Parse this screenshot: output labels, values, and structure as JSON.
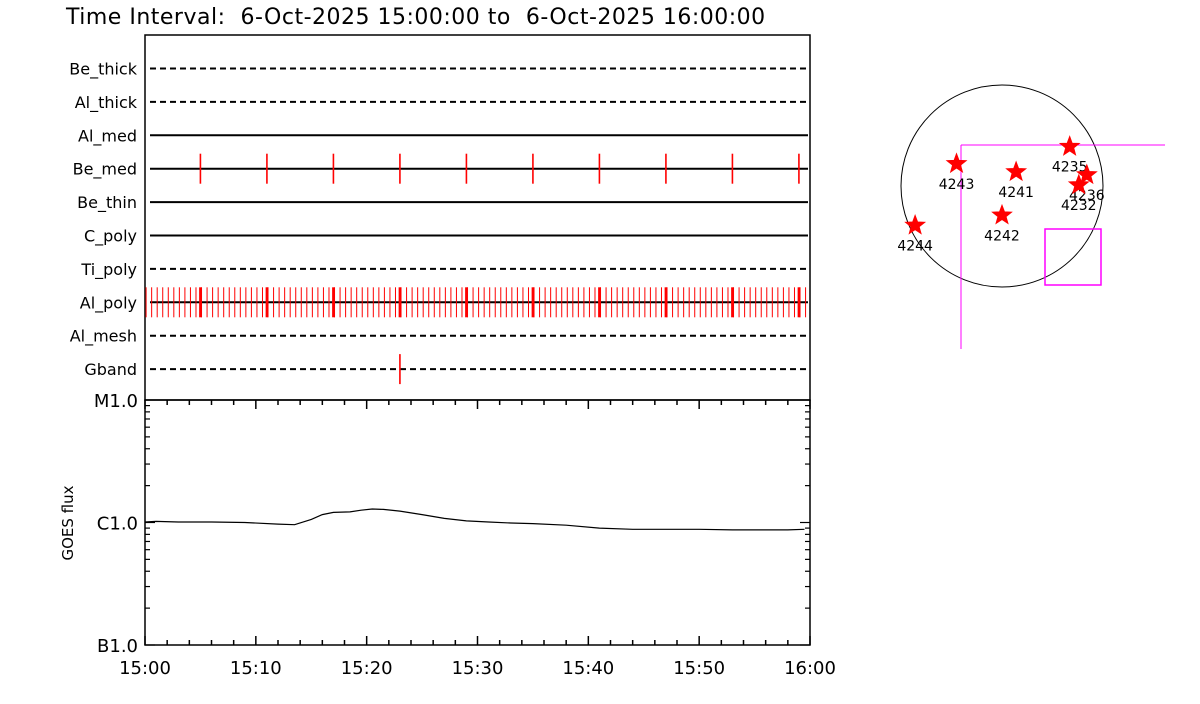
{
  "title": "Time Interval:  6-Oct-2025 15:00:00 to  6-Oct-2025 16:00:00",
  "chart_data": [
    {
      "type": "event-timeline",
      "x_range_minutes": [
        0,
        60
      ],
      "channels": [
        {
          "name": "Be_thick",
          "line": "dashed",
          "events_min": []
        },
        {
          "name": "Al_thick",
          "line": "dashed",
          "events_min": []
        },
        {
          "name": "Al_med",
          "line": "solid",
          "events_min": []
        },
        {
          "name": "Be_med",
          "line": "solid",
          "events_min": [
            5,
            11,
            17,
            23,
            29,
            35,
            41,
            47,
            53,
            59
          ]
        },
        {
          "name": "Be_thin",
          "line": "solid",
          "events_min": []
        },
        {
          "name": "C_poly",
          "line": "solid",
          "events_min": []
        },
        {
          "name": "Ti_poly",
          "line": "dashed",
          "events_min": []
        },
        {
          "name": "Al_poly",
          "line": "solid",
          "events_from": 0.1,
          "events_to": 59.9,
          "events_step": 0.5,
          "thick_events_min": [
            5,
            11,
            17,
            23,
            29,
            35,
            41,
            47,
            53,
            59
          ]
        },
        {
          "name": "Al_mesh",
          "line": "dashed",
          "events_min": []
        },
        {
          "name": "Gband",
          "line": "dashed",
          "events_min": [
            23
          ]
        }
      ],
      "event_color": "#ff0000"
    },
    {
      "type": "line",
      "ylabel": "GOES flux",
      "yscale": "log",
      "ylim": [
        1e-07,
        1e-05
      ],
      "yticks": [
        {
          "value": 1e-05,
          "label": "M1.0"
        },
        {
          "value": 1e-06,
          "label": "C1.0"
        },
        {
          "value": 1e-07,
          "label": "B1.0"
        }
      ],
      "xticks": [
        {
          "value": 0,
          "label": "15:00"
        },
        {
          "value": 10,
          "label": "15:10"
        },
        {
          "value": 20,
          "label": "15:20"
        },
        {
          "value": 30,
          "label": "15:30"
        },
        {
          "value": 40,
          "label": "15:40"
        },
        {
          "value": 50,
          "label": "15:50"
        },
        {
          "value": 60,
          "label": "16:00"
        }
      ],
      "series": [
        {
          "x": [
            0,
            1,
            3,
            6,
            9,
            12,
            13.5,
            15,
            16,
            17,
            18.5,
            19.5,
            20.5,
            21.5,
            23,
            25,
            27,
            29,
            31,
            33,
            35,
            38,
            41,
            44,
            47,
            50,
            53,
            56,
            58,
            59.5
          ],
          "y": [
            1.01e-06,
            1.02e-06,
            1.01e-06,
            1.01e-06,
            1e-06,
            9.7e-07,
            9.6e-07,
            1.06e-06,
            1.16e-06,
            1.21e-06,
            1.22e-06,
            1.26e-06,
            1.29e-06,
            1.28e-06,
            1.24e-06,
            1.16e-06,
            1.08e-06,
            1.03e-06,
            1.01e-06,
            9.9e-07,
            9.8e-07,
            9.5e-07,
            9e-07,
            8.8e-07,
            8.8e-07,
            8.8e-07,
            8.7e-07,
            8.7e-07,
            8.7e-07,
            8.8e-07
          ]
        }
      ]
    },
    {
      "type": "scatter",
      "description": "solar disk with active regions",
      "points": [
        {
          "label": "4243",
          "x": -0.45,
          "y": 0.22
        },
        {
          "label": "4241",
          "x": 0.14,
          "y": 0.14
        },
        {
          "label": "4235",
          "x": 0.67,
          "y": 0.39
        },
        {
          "label": "4236",
          "x": 0.84,
          "y": 0.11
        },
        {
          "label": "4232",
          "x": 0.76,
          "y": 0.01
        },
        {
          "label": "4242",
          "x": 0.0,
          "y": -0.29
        },
        {
          "label": "4244",
          "x": -0.86,
          "y": -0.39
        }
      ],
      "marker_color": "#ff0000",
      "overlay_color": "#ff00ff"
    }
  ]
}
